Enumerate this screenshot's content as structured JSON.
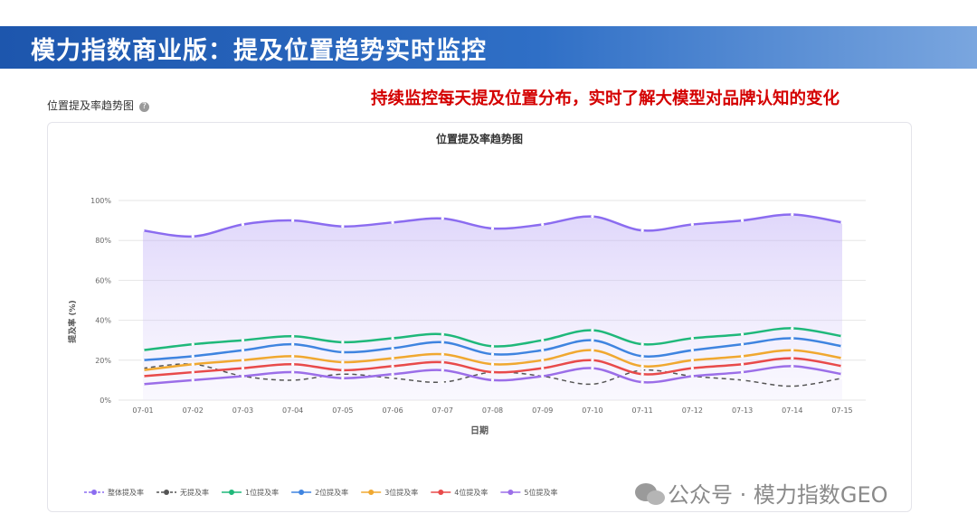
{
  "header": {
    "title": "模力指数商业版：提及位置趋势实时监控"
  },
  "section_label": "位置提及率趋势图",
  "annotation": "持续监控每天提及位置分布，实时了解大模型对品牌认知的变化",
  "watermark": "公众号 · 模力指数GEO",
  "chart_data": {
    "type": "line",
    "title": "位置提及率趋势图",
    "x_label": "日期",
    "y_label": "提及率 (%)",
    "categories": [
      "07-01",
      "07-02",
      "07-03",
      "07-04",
      "07-05",
      "07-06",
      "07-07",
      "07-08",
      "07-09",
      "07-10",
      "07-11",
      "07-12",
      "07-13",
      "07-14",
      "07-15"
    ],
    "ylim": [
      0,
      100
    ],
    "yticks": [
      {
        "value": 0,
        "label": "0%"
      },
      {
        "value": 20,
        "label": "20%"
      },
      {
        "value": 40,
        "label": "40%"
      },
      {
        "value": 60,
        "label": "60%"
      },
      {
        "value": 80,
        "label": "80%"
      },
      {
        "value": 100,
        "label": "100%"
      }
    ],
    "grid": true,
    "legend": "bottom",
    "series": [
      {
        "name": "整体提及率",
        "color": "#8b6cf0",
        "fill": true,
        "values": [
          85,
          82,
          88,
          90,
          87,
          89,
          91,
          86,
          88,
          92,
          85,
          88,
          90,
          93,
          89
        ]
      },
      {
        "name": "无提及率",
        "color": "#555555",
        "dashed": true,
        "values": [
          16,
          18,
          12,
          10,
          13,
          11,
          9,
          14,
          12,
          8,
          15,
          12,
          10,
          7,
          11
        ]
      },
      {
        "name": "1位提及率",
        "color": "#1fb87a",
        "values": [
          25,
          28,
          30,
          32,
          29,
          31,
          33,
          27,
          30,
          35,
          28,
          31,
          33,
          36,
          32
        ]
      },
      {
        "name": "2位提及率",
        "color": "#3f84e0",
        "values": [
          20,
          22,
          25,
          28,
          24,
          26,
          29,
          23,
          25,
          30,
          22,
          25,
          28,
          31,
          27
        ]
      },
      {
        "name": "3位提及率",
        "color": "#f0a830",
        "values": [
          15,
          18,
          20,
          22,
          19,
          21,
          23,
          18,
          20,
          25,
          17,
          20,
          22,
          25,
          21
        ]
      },
      {
        "name": "4位提及率",
        "color": "#e84a4a",
        "values": [
          12,
          14,
          16,
          18,
          15,
          17,
          19,
          14,
          16,
          20,
          13,
          16,
          18,
          21,
          17
        ]
      },
      {
        "name": "5位提及率",
        "color": "#9b6ee8",
        "values": [
          8,
          10,
          12,
          14,
          11,
          13,
          15,
          10,
          12,
          16,
          9,
          12,
          14,
          17,
          13
        ]
      }
    ]
  }
}
